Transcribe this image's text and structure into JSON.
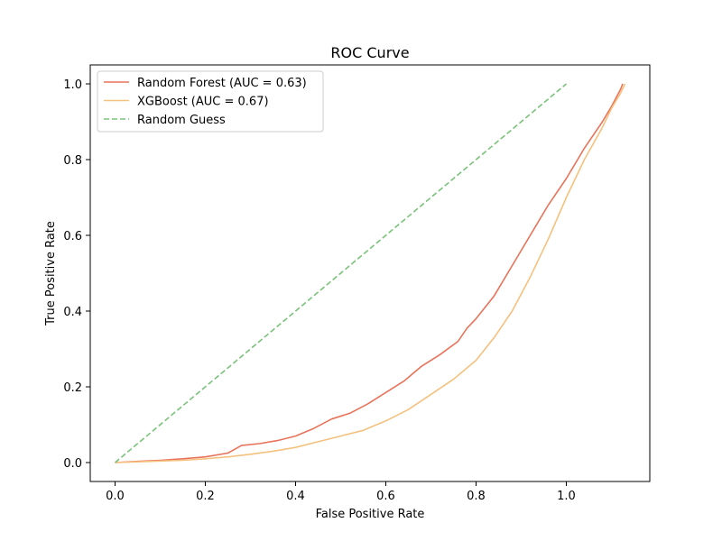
{
  "chart_data": {
    "type": "line",
    "title": "ROC Curve",
    "xlabel": "False Positive Rate",
    "ylabel": "True Positive Rate",
    "xlim": [
      -0.055,
      1.185
    ],
    "ylim": [
      -0.05,
      1.05
    ],
    "xticks": [
      0.0,
      0.2,
      0.4,
      0.6,
      0.8,
      1.0
    ],
    "yticks": [
      0.0,
      0.2,
      0.4,
      0.6,
      0.8,
      1.0
    ],
    "xtick_labels": [
      "0.0",
      "0.2",
      "0.4",
      "0.6",
      "0.8",
      "1.0"
    ],
    "ytick_labels": [
      "0.0",
      "0.2",
      "0.4",
      "0.6",
      "0.8",
      "1.0"
    ],
    "grid": false,
    "legend_position": "top-left",
    "series": [
      {
        "name": "Random Forest (AUC = 0.63)",
        "color": "#e8735a",
        "style": "solid",
        "x": [
          0.0,
          0.05,
          0.1,
          0.15,
          0.2,
          0.25,
          0.28,
          0.32,
          0.36,
          0.4,
          0.44,
          0.48,
          0.52,
          0.56,
          0.6,
          0.64,
          0.68,
          0.72,
          0.76,
          0.78,
          0.8,
          0.84,
          0.88,
          0.92,
          0.96,
          1.0,
          1.04,
          1.06,
          1.08,
          1.1,
          1.12,
          1.125
        ],
        "y": [
          0.0,
          0.003,
          0.006,
          0.01,
          0.015,
          0.025,
          0.045,
          0.05,
          0.058,
          0.07,
          0.09,
          0.115,
          0.13,
          0.155,
          0.185,
          0.215,
          0.255,
          0.285,
          0.32,
          0.355,
          0.38,
          0.44,
          0.52,
          0.6,
          0.68,
          0.75,
          0.83,
          0.865,
          0.9,
          0.94,
          0.985,
          1.0
        ]
      },
      {
        "name": "XGBoost (AUC = 0.67)",
        "color": "#f5c17f",
        "style": "solid",
        "x": [
          0.0,
          0.05,
          0.1,
          0.15,
          0.2,
          0.25,
          0.3,
          0.35,
          0.4,
          0.45,
          0.5,
          0.55,
          0.6,
          0.65,
          0.7,
          0.75,
          0.8,
          0.84,
          0.88,
          0.92,
          0.96,
          1.0,
          1.04,
          1.08,
          1.1,
          1.12,
          1.13
        ],
        "y": [
          0.0,
          0.002,
          0.004,
          0.006,
          0.01,
          0.015,
          0.022,
          0.03,
          0.04,
          0.055,
          0.07,
          0.085,
          0.11,
          0.14,
          0.18,
          0.22,
          0.27,
          0.33,
          0.4,
          0.49,
          0.59,
          0.7,
          0.8,
          0.885,
          0.935,
          0.975,
          1.0
        ]
      },
      {
        "name": "Random Guess",
        "color": "#7ac27a",
        "style": "dashed",
        "x": [
          0.0,
          1.0
        ],
        "y": [
          0.0,
          1.0
        ]
      }
    ]
  }
}
